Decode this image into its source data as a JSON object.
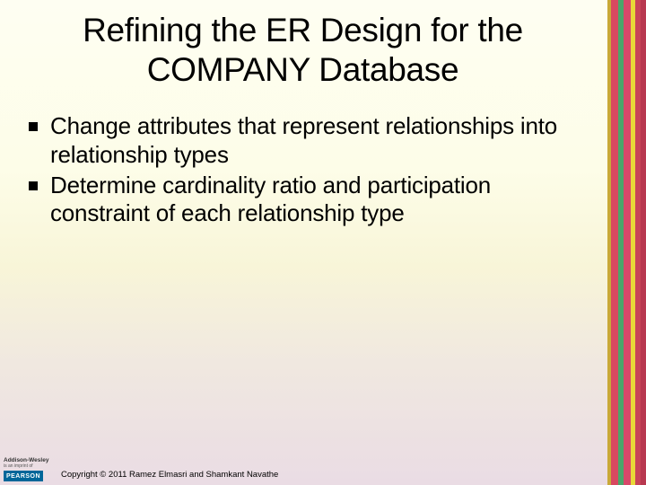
{
  "title_line1": "Refining the ER Design for the",
  "title_line2": "COMPANY Database",
  "bullets": [
    "Change attributes that represent relationships into relationship types",
    "Determine cardinality ratio and participation constraint of each relationship type"
  ],
  "stripes": [
    {
      "color": "#c9a938",
      "width": 4
    },
    {
      "color": "#d84860",
      "width": 8
    },
    {
      "color": "#4aa66a",
      "width": 6
    },
    {
      "color": "#d8486a",
      "width": 8
    },
    {
      "color": "#e8d838",
      "width": 5
    },
    {
      "color": "#c84458",
      "width": 6
    },
    {
      "color": "#b83850",
      "width": 6
    }
  ],
  "logo": {
    "brand_top": "Addison-Wesley",
    "brand_sub": "is an imprint of",
    "publisher": "PEARSON"
  },
  "copyright": "Copyright © 2011 Ramez Elmasri and Shamkant Navathe"
}
